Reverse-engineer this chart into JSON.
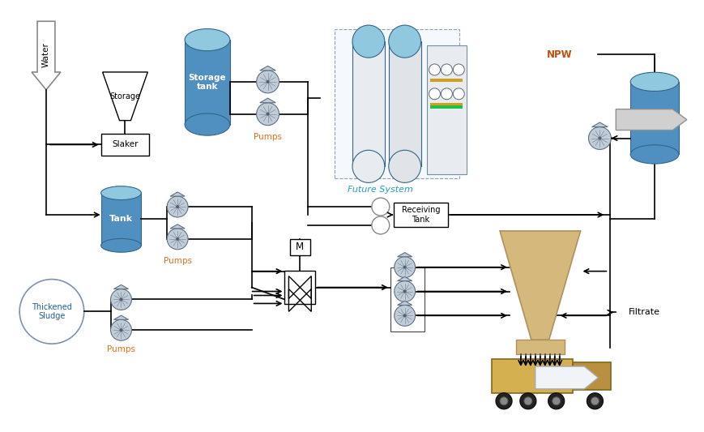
{
  "bg_color": "#ffffff",
  "fig_width": 8.7,
  "fig_height": 5.33,
  "labels": {
    "water": "Water",
    "storage_hopper": "Storage",
    "slaker": "Slaker",
    "tank": "Tank",
    "storage_tank": "Storage\ntank",
    "pumps1": "Pumps",
    "pumps2": "Pumps",
    "future_system": "Future System",
    "npw": "NPW",
    "receiving_tank": "Receiving\nTank",
    "thickened_sludge": "Thickened\nSludge",
    "pumps3": "Pumps",
    "filtrate": "Filtrate",
    "m_label": "M"
  },
  "colors": {
    "tank_blue_light": "#6aaed6",
    "tank_blue_mid": "#4a90c4",
    "tank_blue_dark": "#2a6090",
    "pump_gray_light": "#c8d0d8",
    "pump_gray_mid": "#9aa8b4",
    "line_black": "#000000",
    "orange_text": "#e07020",
    "blue_text": "#2060a0",
    "cyan_text": "#20a0c0",
    "filtrate_arrow": "#c8c8c8",
    "npw_arrow_fill": "#f0f4f8",
    "npw_arrow_border": "#bbbbbb",
    "sludge_circle_border": "#8090b0",
    "cone_fill": "#d4b87c",
    "cone_border": "#b09060",
    "truck_body": "#d4b050",
    "truck_cab": "#b89040"
  }
}
